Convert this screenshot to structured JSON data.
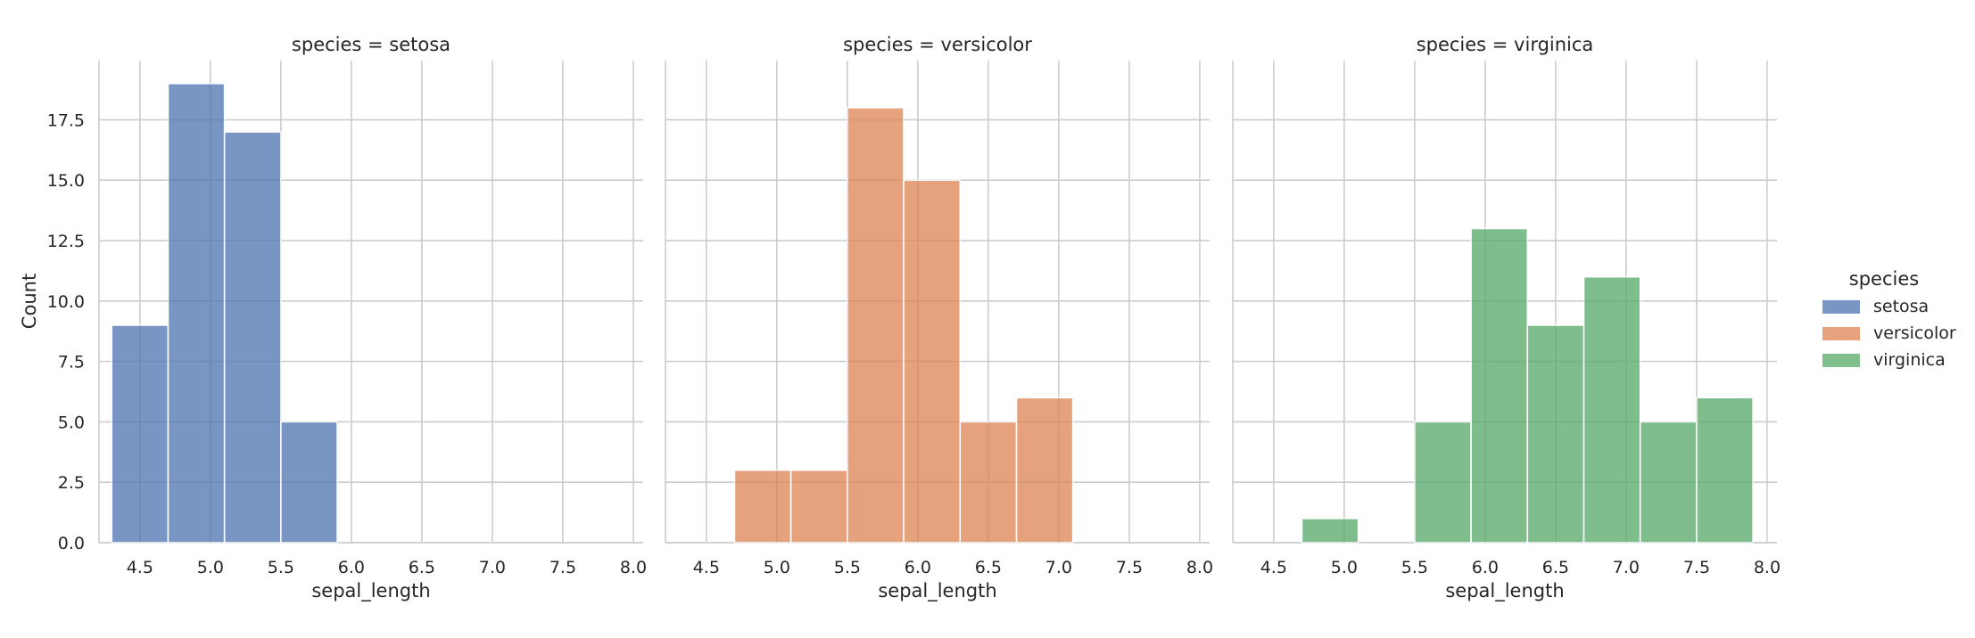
{
  "chart_data": {
    "type": "bar",
    "subtype": "histogram-facet",
    "ylabel": "Count",
    "xlabel": "sepal_length",
    "xlim": [
      4.21,
      8.07
    ],
    "ylim": [
      0,
      19.95
    ],
    "xticks": [
      "4.5",
      "5.0",
      "5.5",
      "6.0",
      "6.5",
      "7.0",
      "7.5",
      "8.0"
    ],
    "yticks": [
      "0.0",
      "2.5",
      "5.0",
      "7.5",
      "10.0",
      "12.5",
      "15.0",
      "17.5"
    ],
    "bin_edges": [
      4.3,
      4.7,
      5.1,
      5.5,
      5.9,
      6.3,
      6.7,
      7.1,
      7.5,
      7.9
    ],
    "grid": true,
    "legend": {
      "title": "species",
      "placement": "right",
      "entries": [
        "setosa",
        "versicolor",
        "virginica"
      ]
    },
    "panels": [
      {
        "title": "species = setosa",
        "series": "setosa",
        "color": "#4c72b0",
        "values": [
          9,
          19,
          17,
          5,
          0,
          0,
          0,
          0,
          0
        ]
      },
      {
        "title": "species = versicolor",
        "series": "versicolor",
        "color": "#dd8452",
        "values": [
          0,
          3,
          3,
          18,
          15,
          5,
          6,
          0,
          0
        ]
      },
      {
        "title": "species = virginica",
        "series": "virginica",
        "color": "#55a868",
        "values": [
          0,
          1,
          0,
          5,
          13,
          9,
          11,
          5,
          6
        ]
      }
    ]
  }
}
